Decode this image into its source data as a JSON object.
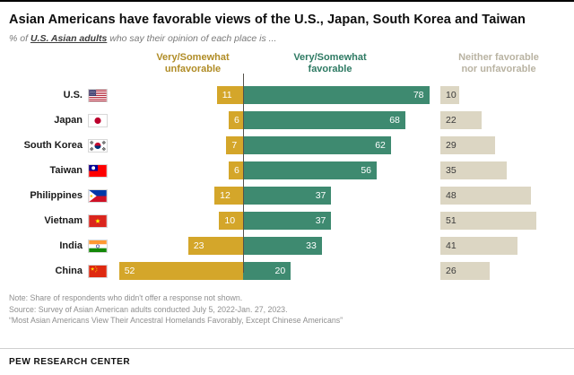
{
  "meta": {
    "title": "Asian Americans have favorable views of the U.S., Japan, South Korea and Taiwan",
    "subtitle_prefix": "% of ",
    "subtitle_emphasis": "U.S. Asian adults",
    "subtitle_suffix": " who say their opinion of each place is ..."
  },
  "headers": {
    "unfavorable_line1": "Very/Somewhat",
    "unfavorable_line2": "unfavorable",
    "favorable_line1": "Very/Somewhat",
    "favorable_line2": "favorable",
    "neither_line1": "Neither favorable",
    "neither_line2": "nor unfavorable"
  },
  "chart_data": {
    "type": "bar",
    "variant": "horizontal-diverging",
    "categories": [
      "U.S.",
      "Japan",
      "South Korea",
      "Taiwan",
      "Philippines",
      "Vietnam",
      "India",
      "China"
    ],
    "flag_icons": [
      "us",
      "japan",
      "south-korea",
      "taiwan",
      "philippines",
      "vietnam",
      "india",
      "china"
    ],
    "series": [
      {
        "name": "Very/Somewhat unfavorable",
        "color": "#D4A62A",
        "values": [
          11,
          6,
          7,
          6,
          12,
          10,
          23,
          52
        ]
      },
      {
        "name": "Very/Somewhat favorable",
        "color": "#3E8A70",
        "values": [
          78,
          68,
          62,
          56,
          37,
          37,
          33,
          20
        ]
      },
      {
        "name": "Neither favorable nor unfavorable",
        "color": "#DCD6C3",
        "values": [
          10,
          22,
          29,
          35,
          48,
          51,
          41,
          26
        ]
      }
    ],
    "xlim": [
      0,
      100
    ],
    "value_labels": true,
    "legend_position": "top"
  },
  "notes": {
    "note": "Note: Share of respondents who didn't offer a response not shown.",
    "source": "Source: Survey of Asian American adults conducted July 5, 2022-Jan. 27, 2023.",
    "quote": "“Most Asian Americans View Their Ancestral Homelands Favorably, Except Chinese Americans”"
  },
  "footer": {
    "brand": "PEW RESEARCH CENTER"
  },
  "colors": {
    "unfavorable": "#D4A62A",
    "favorable": "#3E8A70",
    "neither": "#DCD6C3",
    "header_unfavorable": "#B08C26",
    "header_favorable": "#2E7A63",
    "header_neither": "#B9B3A2",
    "axis": "#55524B"
  }
}
